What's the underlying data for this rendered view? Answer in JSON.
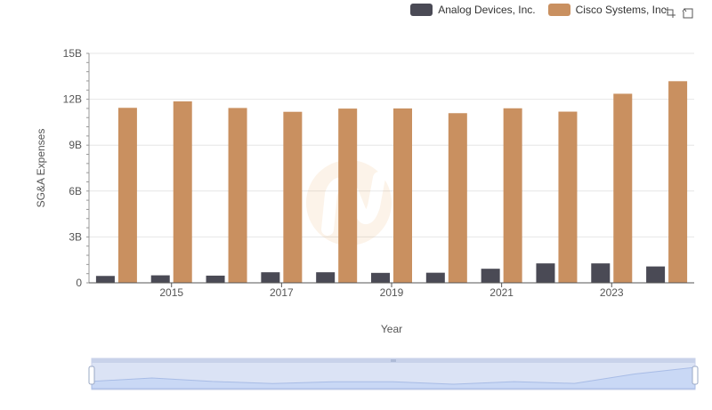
{
  "chart_data": {
    "type": "bar",
    "title": "",
    "xlabel": "Year",
    "ylabel": "SG&A Expenses",
    "ylim": [
      0,
      15
    ],
    "y_tick_labels": [
      "0",
      "3B",
      "6B",
      "9B",
      "12B",
      "15B"
    ],
    "y_ticks": [
      0,
      3,
      6,
      9,
      12,
      15
    ],
    "x": [
      2014,
      2015,
      2016,
      2017,
      2018,
      2019,
      2020,
      2021,
      2022,
      2023,
      2024
    ],
    "x_tick_labels": [
      "2015",
      "2017",
      "2019",
      "2021",
      "2023"
    ],
    "x_tick_values": [
      2015,
      2017,
      2019,
      2021,
      2023
    ],
    "series": [
      {
        "name": "Analog Devices, Inc.",
        "color": "#4a4a55",
        "values": [
          0.45,
          0.49,
          0.47,
          0.69,
          0.69,
          0.65,
          0.66,
          0.92,
          1.27,
          1.27,
          1.07
        ]
      },
      {
        "name": "Cisco Systems, Inc.",
        "color": "#c99060",
        "values": [
          11.44,
          11.86,
          11.43,
          11.18,
          11.39,
          11.4,
          11.09,
          11.41,
          11.19,
          12.36,
          13.18
        ]
      }
    ],
    "legend_position": "top-right",
    "grid": true
  },
  "toolbox": {
    "zoom_icon": "zoom-icon",
    "restore_icon": "restore-icon"
  }
}
